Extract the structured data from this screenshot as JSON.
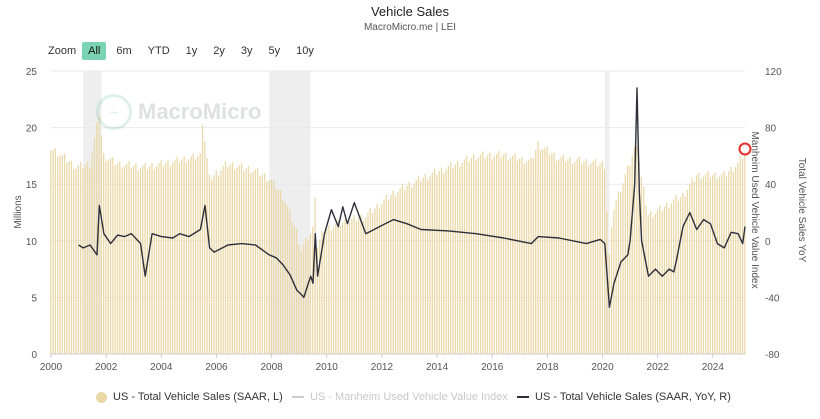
{
  "header": {
    "title": "Vehicle Sales",
    "subtitle": "MacroMicro.me | LEI"
  },
  "zoom": {
    "label": "Zoom",
    "buttons": [
      "All",
      "6m",
      "YTD",
      "1y",
      "2y",
      "3y",
      "5y",
      "10y"
    ],
    "active": "All"
  },
  "watermark": {
    "text": "MacroMicro"
  },
  "colors": {
    "bars": "#ead8a7",
    "line": "#2e2f3a",
    "manheim": "#cccccc",
    "recession": "#eeeeee",
    "grid": "#e9e9e9",
    "accent": "#7ad3b3",
    "marker": "#e4322b"
  },
  "chart_data": {
    "type": "bar",
    "x_range": [
      "2000-01",
      "2025-03"
    ],
    "xticks": [
      "2000",
      "2002",
      "2004",
      "2006",
      "2008",
      "2010",
      "2012",
      "2014",
      "2016",
      "2018",
      "2020",
      "2022",
      "2024"
    ],
    "left_axis": {
      "label": "Millions",
      "range": [
        0,
        25
      ],
      "ticks": [
        "0",
        "5",
        "10",
        "15",
        "20",
        "25"
      ]
    },
    "right_axis": {
      "labels": [
        "Manheim Used Vehicle Value Index",
        "Total Vehicle Sales YoY"
      ],
      "range": [
        -80,
        120
      ],
      "ticks": [
        "-80",
        "-40",
        "0",
        "40",
        "80",
        "120"
      ]
    },
    "recessions": [
      [
        "2001-03",
        "2001-11"
      ],
      [
        "2007-12",
        "2009-06"
      ],
      [
        "2020-02",
        "2020-04"
      ]
    ],
    "bar_anchors": [
      [
        "2000-01",
        18.2
      ],
      [
        "2000-06",
        17.5
      ],
      [
        "2000-12",
        16.5
      ],
      [
        "2001-06",
        16.8
      ],
      [
        "2001-10",
        21.2
      ],
      [
        "2001-12",
        17.5
      ],
      [
        "2002-06",
        16.8
      ],
      [
        "2003-06",
        16.5
      ],
      [
        "2004-06",
        17.0
      ],
      [
        "2005-06",
        17.5
      ],
      [
        "2005-07",
        20.6
      ],
      [
        "2005-10",
        15.5
      ],
      [
        "2006-06",
        16.8
      ],
      [
        "2007-06",
        16.2
      ],
      [
        "2007-12",
        15.5
      ],
      [
        "2008-06",
        14.0
      ],
      [
        "2008-12",
        10.8
      ],
      [
        "2009-02",
        9.2
      ],
      [
        "2009-07",
        11.0
      ],
      [
        "2009-08",
        14.2
      ],
      [
        "2009-09",
        9.5
      ],
      [
        "2009-12",
        11.0
      ],
      [
        "2010-06",
        11.5
      ],
      [
        "2011-06",
        12.2
      ],
      [
        "2012-06",
        14.2
      ],
      [
        "2013-06",
        15.5
      ],
      [
        "2014-06",
        16.5
      ],
      [
        "2015-06",
        17.5
      ],
      [
        "2016-06",
        17.6
      ],
      [
        "2017-06",
        17.0
      ],
      [
        "2017-09",
        18.5
      ],
      [
        "2018-06",
        17.3
      ],
      [
        "2019-06",
        17.0
      ],
      [
        "2020-01",
        16.8
      ],
      [
        "2020-02",
        16.7
      ],
      [
        "2020-04",
        8.7
      ],
      [
        "2020-06",
        13.0
      ],
      [
        "2020-12",
        16.3
      ],
      [
        "2021-04",
        18.7
      ],
      [
        "2021-06",
        15.5
      ],
      [
        "2021-09",
        12.3
      ],
      [
        "2021-12",
        12.5
      ],
      [
        "2022-06",
        13.3
      ],
      [
        "2022-12",
        14.0
      ],
      [
        "2023-06",
        15.8
      ],
      [
        "2024-06",
        15.8
      ],
      [
        "2024-12",
        16.8
      ],
      [
        "2025-03",
        17.8
      ]
    ],
    "bar_series_name": "US - Total Vehicle Sales (SAAR, L)",
    "series": [
      {
        "name": "US - Total Vehicle Sales (SAAR, YoY, R)",
        "axis": "right",
        "points": [
          [
            "2001-01",
            -3
          ],
          [
            "2001-03",
            -5
          ],
          [
            "2001-06",
            -3
          ],
          [
            "2001-09",
            -10
          ],
          [
            "2001-10",
            25
          ],
          [
            "2001-12",
            5
          ],
          [
            "2002-03",
            -2
          ],
          [
            "2002-06",
            4
          ],
          [
            "2002-09",
            3
          ],
          [
            "2002-12",
            5
          ],
          [
            "2003-04",
            -2
          ],
          [
            "2003-06",
            -25
          ],
          [
            "2003-09",
            5
          ],
          [
            "2004-01",
            3
          ],
          [
            "2004-06",
            2
          ],
          [
            "2004-09",
            5
          ],
          [
            "2005-01",
            3
          ],
          [
            "2005-06",
            8
          ],
          [
            "2005-08",
            25
          ],
          [
            "2005-10",
            -5
          ],
          [
            "2005-12",
            -8
          ],
          [
            "2006-06",
            -3
          ],
          [
            "2006-12",
            -2
          ],
          [
            "2007-06",
            -3
          ],
          [
            "2007-12",
            -10
          ],
          [
            "2008-03",
            -12
          ],
          [
            "2008-06",
            -17
          ],
          [
            "2008-09",
            -24
          ],
          [
            "2008-12",
            -35
          ],
          [
            "2009-02",
            -38
          ],
          [
            "2009-03",
            -40
          ],
          [
            "2009-06",
            -25
          ],
          [
            "2009-07",
            -30
          ],
          [
            "2009-08",
            5
          ],
          [
            "2009-09",
            -25
          ],
          [
            "2009-12",
            5
          ],
          [
            "2010-03",
            22
          ],
          [
            "2010-06",
            10
          ],
          [
            "2010-08",
            24
          ],
          [
            "2010-10",
            12
          ],
          [
            "2011-01",
            27
          ],
          [
            "2011-06",
            5
          ],
          [
            "2011-12",
            10
          ],
          [
            "2012-06",
            15
          ],
          [
            "2012-12",
            12
          ],
          [
            "2013-06",
            8
          ],
          [
            "2014-06",
            7
          ],
          [
            "2015-06",
            5
          ],
          [
            "2016-06",
            2
          ],
          [
            "2017-06",
            -2
          ],
          [
            "2017-09",
            3
          ],
          [
            "2018-06",
            2
          ],
          [
            "2019-06",
            -2
          ],
          [
            "2019-12",
            1
          ],
          [
            "2020-02",
            -2
          ],
          [
            "2020-04",
            -47
          ],
          [
            "2020-06",
            -30
          ],
          [
            "2020-09",
            -15
          ],
          [
            "2020-12",
            -10
          ],
          [
            "2021-01",
            0
          ],
          [
            "2021-03",
            40
          ],
          [
            "2021-04",
            108
          ],
          [
            "2021-05",
            35
          ],
          [
            "2021-06",
            0
          ],
          [
            "2021-09",
            -25
          ],
          [
            "2021-12",
            -20
          ],
          [
            "2022-03",
            -25
          ],
          [
            "2022-06",
            -20
          ],
          [
            "2022-08",
            -22
          ],
          [
            "2022-09",
            -15
          ],
          [
            "2022-12",
            10
          ],
          [
            "2023-03",
            20
          ],
          [
            "2023-06",
            8
          ],
          [
            "2023-09",
            15
          ],
          [
            "2023-12",
            12
          ],
          [
            "2024-03",
            -2
          ],
          [
            "2024-06",
            -5
          ],
          [
            "2024-09",
            6
          ],
          [
            "2024-12",
            5
          ],
          [
            "2025-02",
            -2
          ],
          [
            "2025-03",
            10
          ]
        ]
      }
    ],
    "legend": [
      {
        "label": "US - Total Vehicle Sales (SAAR, L)",
        "swatch": "dot",
        "color": "#ead8a7"
      },
      {
        "label": "US - Manheim Used Vehicle Value Index",
        "swatch": "line",
        "color": "#cccccc",
        "hidden": true
      },
      {
        "label": "US - Total Vehicle Sales (SAAR, YoY, R)",
        "swatch": "line",
        "color": "#2e2f3a"
      }
    ]
  }
}
